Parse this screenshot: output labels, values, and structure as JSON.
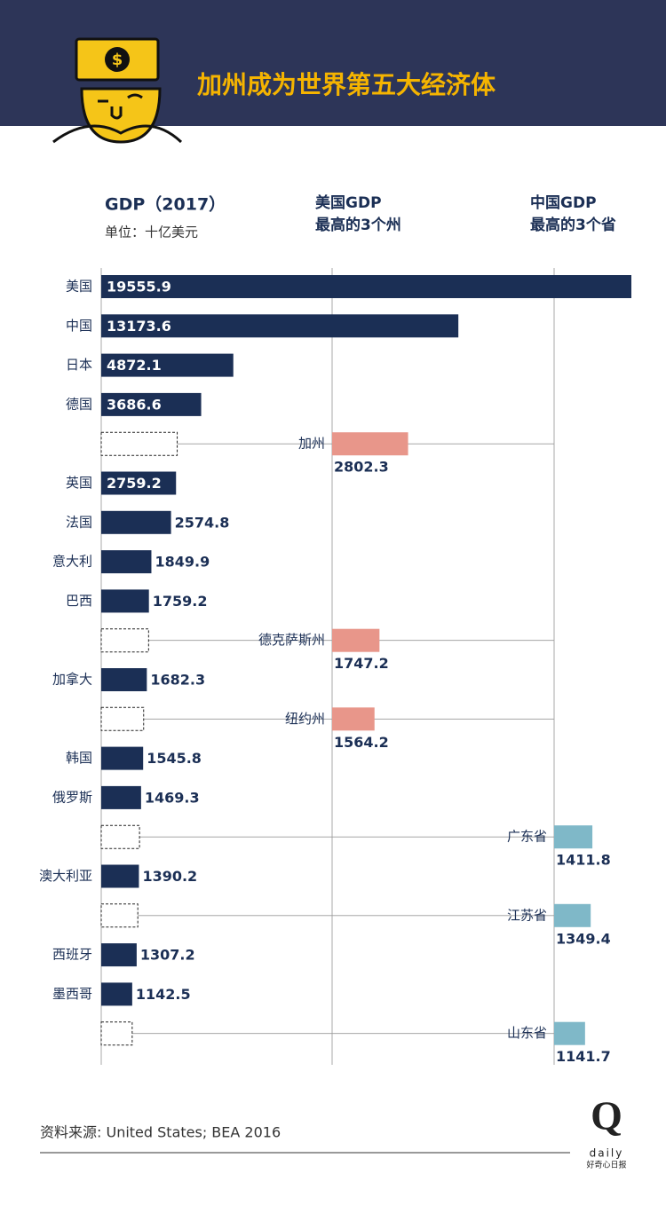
{
  "chart_data": {
    "type": "bar",
    "title": "加州成为世界第五大经济体",
    "axis_title": "GDP（2017）",
    "unit": "单位：十亿美元",
    "us_header": [
      "美国GDP",
      "最高的3个州"
    ],
    "cn_header": [
      "中国GDP",
      "最高的3个省"
    ],
    "categories": [
      "美国",
      "中国",
      "日本",
      "德国",
      "加州",
      "英国",
      "法国",
      "意大利",
      "巴西",
      "德克萨斯州",
      "加拿大",
      "纽约州",
      "韩国",
      "俄罗斯",
      "广东省",
      "澳大利亚",
      "江苏省",
      "西班牙",
      "墨西哥",
      "山东省"
    ],
    "series": [
      {
        "color": "#1b2f55",
        "values": [
          19555.9,
          13173.6,
          4872.1,
          3686.6,
          null,
          2759.2,
          2574.8,
          1849.9,
          1759.2,
          null,
          1682.3,
          null,
          1545.8,
          1469.3,
          null,
          1390.2,
          null,
          1307.2,
          1142.5,
          null
        ]
      },
      {
        "color": "#e8968a",
        "values": [
          null,
          null,
          null,
          null,
          2802.3,
          null,
          null,
          null,
          null,
          1747.2,
          null,
          1564.2,
          null,
          null,
          null,
          null,
          null,
          null,
          null,
          null
        ]
      },
      {
        "color": "#7fb8c8",
        "values": [
          null,
          null,
          null,
          null,
          null,
          null,
          null,
          null,
          null,
          null,
          null,
          null,
          null,
          null,
          1411.8,
          null,
          1349.4,
          null,
          null,
          1141.7
        ]
      }
    ],
    "xlim": [
      0,
      19555.9
    ],
    "source": "资料来源: United States; BEA 2016",
    "logo": {
      "mark": "Q",
      "word": "daily",
      "name": "好奇心日报"
    }
  }
}
